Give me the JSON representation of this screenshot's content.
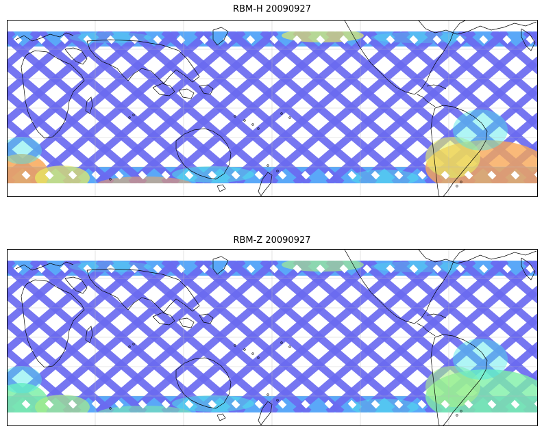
{
  "panels": [
    {
      "title": "RBM-H 20090927",
      "colors": {
        "base": "#6a6af0",
        "mid": "#5aa8f8",
        "cyan": "#4ee8e8",
        "warm": "#f8a858",
        "yellow": "#e8f060"
      }
    },
    {
      "title": "RBM-Z 20090927",
      "colors": {
        "base": "#6a6af0",
        "mid": "#5aa8f8",
        "cyan": "#4ee8e8",
        "warm": "#7ef0a8",
        "yellow": "#a8f088"
      }
    }
  ],
  "gridlines": true,
  "coastline_color": "#000000"
}
